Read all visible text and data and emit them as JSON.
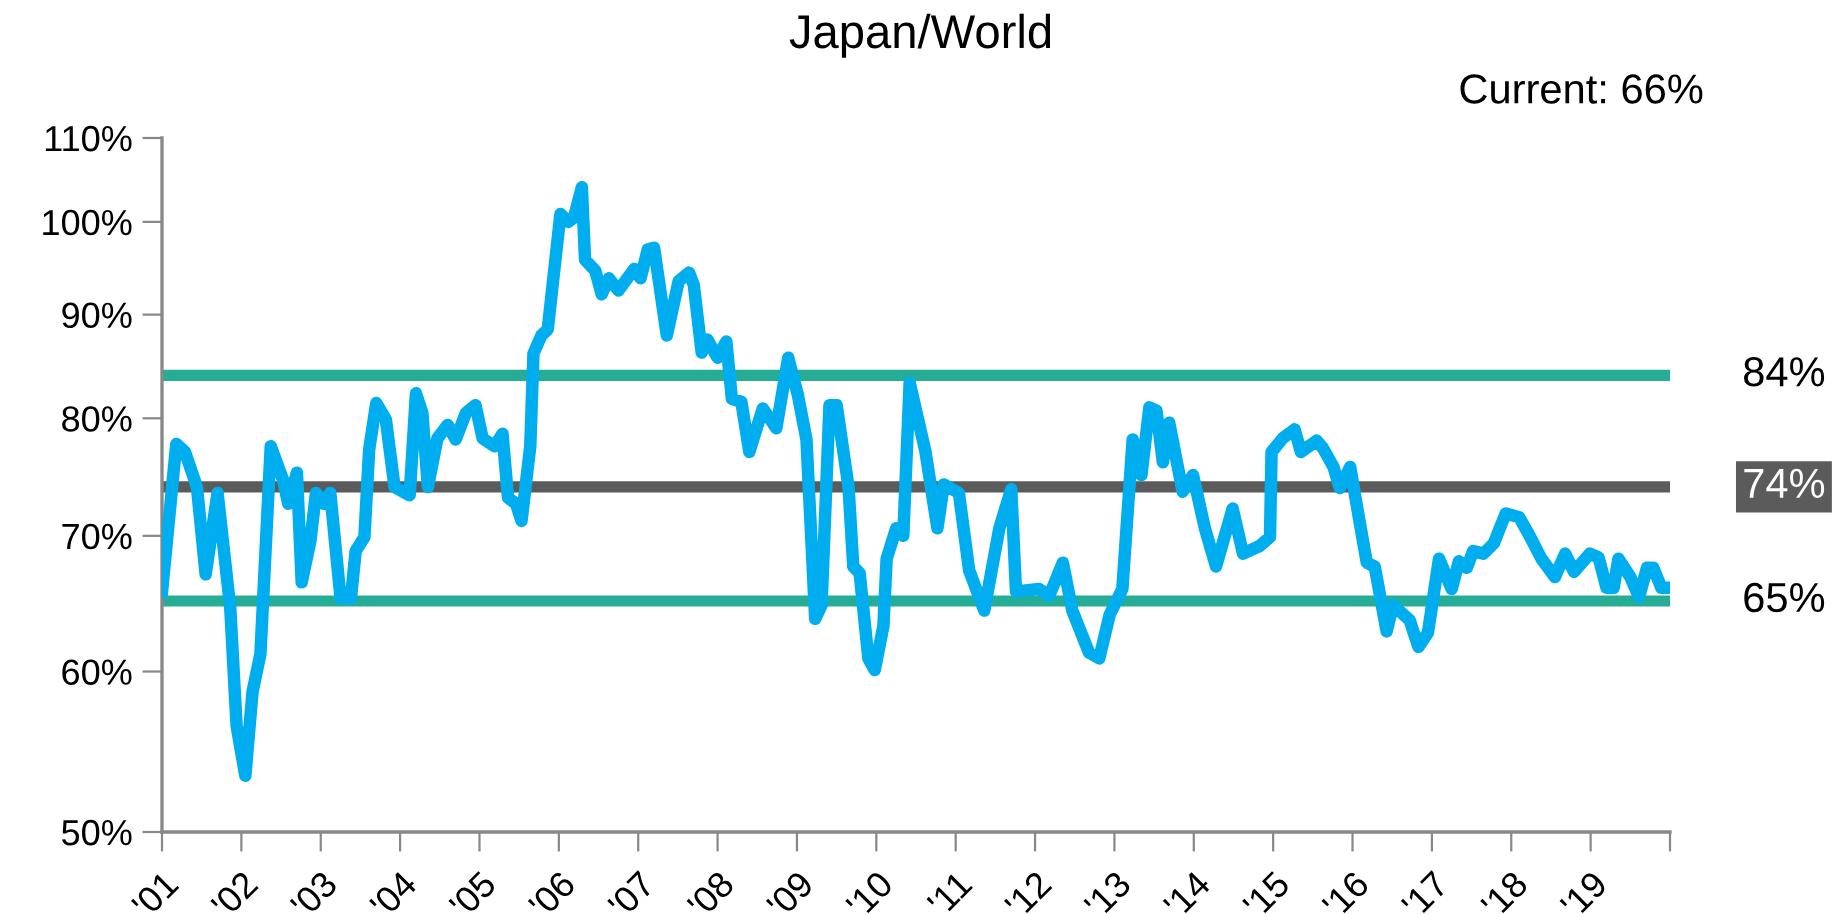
{
  "chart_data": {
    "type": "line",
    "title": "Japan/World",
    "annotations": [
      "Current: 66%"
    ],
    "x": [
      2001.0,
      2001.18,
      2001.29,
      2001.44,
      2001.55,
      2001.7,
      2001.86,
      2001.94,
      2002.05,
      2002.14,
      2002.24,
      2002.37,
      2002.53,
      2002.59,
      2002.7,
      2002.76,
      2002.87,
      2002.94,
      2003.04,
      2003.12,
      2003.25,
      2003.38,
      2003.44,
      2003.55,
      2003.61,
      2003.7,
      2003.82,
      2003.93,
      2004.04,
      2004.12,
      2004.2,
      2004.28,
      2004.35,
      2004.47,
      2004.6,
      2004.7,
      2004.83,
      2004.95,
      2005.04,
      2005.19,
      2005.29,
      2005.36,
      2005.46,
      2005.53,
      2005.64,
      2005.68,
      2005.78,
      2005.86,
      2006.02,
      2006.12,
      2006.19,
      2006.29,
      2006.33,
      2006.46,
      2006.54,
      2006.63,
      2006.75,
      2006.95,
      2007.03,
      2007.12,
      2007.2,
      2007.36,
      2007.51,
      2007.64,
      2007.7,
      2007.8,
      2007.87,
      2008.0,
      2008.11,
      2008.18,
      2008.3,
      2008.4,
      2008.57,
      2008.74,
      2008.89,
      2009.01,
      2009.12,
      2009.23,
      2009.31,
      2009.41,
      2009.5,
      2009.65,
      2009.71,
      2009.79,
      2009.9,
      2009.98,
      2010.09,
      2010.13,
      2010.25,
      2010.34,
      2010.42,
      2010.62,
      2010.77,
      2010.85,
      2011.04,
      2011.17,
      2011.36,
      2011.55,
      2011.7,
      2011.76,
      2012.05,
      2012.18,
      2012.35,
      2012.47,
      2012.68,
      2012.81,
      2012.94,
      2013.1,
      2013.23,
      2013.34,
      2013.44,
      2013.53,
      2013.61,
      2013.69,
      2013.86,
      2013.99,
      2014.14,
      2014.28,
      2014.49,
      2014.62,
      2014.83,
      2014.96,
      2014.98,
      2015.12,
      2015.27,
      2015.35,
      2015.55,
      2015.63,
      2015.76,
      2015.84,
      2015.97,
      2016.09,
      2016.18,
      2016.28,
      2016.43,
      2016.51,
      2016.72,
      2016.83,
      2016.95,
      2017.09,
      2017.25,
      2017.34,
      2017.44,
      2017.52,
      2017.65,
      2017.78,
      2017.93,
      2018.1,
      2018.24,
      2018.38,
      2018.55,
      2018.68,
      2018.79,
      2018.99,
      2019.1,
      2019.2,
      2019.29,
      2019.35,
      2019.5,
      2019.61,
      2019.71,
      2019.79,
      2019.89,
      2019.96
    ],
    "series": [
      {
        "color": "#00aeef",
        "values": [
          65.7,
          77.7,
          77.0,
          74.0,
          67.0,
          73.5,
          64.5,
          56.4,
          53.3,
          58.6,
          61.2,
          77.5,
          74.5,
          72.6,
          75.2,
          66.4,
          69.6,
          73.5,
          72.6,
          73.5,
          65.2,
          65.2,
          68.8,
          69.9,
          77.2,
          81.4,
          79.9,
          74.0,
          73.6,
          73.3,
          82.3,
          80.5,
          74.0,
          78.2,
          79.4,
          78.1,
          80.5,
          81.2,
          78.2,
          77.5,
          78.6,
          73.1,
          72.6,
          71.2,
          77.5,
          86.1,
          87.9,
          88.5,
          100.9,
          100.0,
          100.5,
          104.0,
          95.8,
          94.6,
          92.1,
          93.8,
          92.5,
          94.8,
          93.8,
          96.9,
          97.1,
          87.9,
          93.5,
          94.4,
          93.1,
          86.2,
          87.5,
          85.7,
          87.3,
          81.8,
          81.5,
          77.0,
          80.9,
          79.1,
          85.7,
          82.2,
          78.1,
          63.7,
          64.7,
          81.2,
          81.2,
          74.0,
          67.6,
          67.1,
          60.9,
          60.1,
          63.2,
          68.2,
          70.6,
          70.0,
          83.3,
          77.0,
          70.6,
          74.2,
          73.5,
          67.3,
          64.3,
          70.6,
          73.8,
          65.7,
          65.9,
          65.4,
          67.9,
          64.3,
          61.3,
          60.9,
          64.0,
          65.9,
          78.1,
          75.0,
          81.0,
          80.7,
          76.1,
          79.6,
          73.6,
          75.0,
          70.6,
          67.6,
          72.2,
          68.6,
          69.2,
          69.9,
          77.0,
          78.2,
          79.0,
          77.0,
          78.0,
          77.3,
          75.7,
          73.9,
          75.7,
          71.1,
          67.9,
          67.6,
          62.8,
          64.7,
          63.6,
          61.7,
          62.7,
          68.2,
          65.9,
          68.0,
          67.5,
          68.8,
          68.6,
          69.4,
          71.8,
          71.5,
          69.9,
          68.2,
          66.8,
          68.6,
          67.2,
          68.6,
          68.3,
          66.0,
          66.0,
          68.2,
          66.8,
          65.3,
          67.5,
          67.5,
          66.0,
          66.0
        ]
      }
    ],
    "log": "y",
    "ylim": [
      50,
      110
    ],
    "yticks": [
      {
        "value": 50,
        "label": "50%"
      },
      {
        "value": 60,
        "label": "60%"
      },
      {
        "value": 70,
        "label": "70%"
      },
      {
        "value": 80,
        "label": "80%"
      },
      {
        "value": 90,
        "label": "90%"
      },
      {
        "value": 100,
        "label": "100%"
      },
      {
        "value": 110,
        "label": "110%"
      }
    ],
    "xlim": [
      2001,
      2020
    ],
    "xticks": [
      {
        "value": 2001,
        "label": "'01"
      },
      {
        "value": 2002,
        "label": "'02"
      },
      {
        "value": 2003,
        "label": "'03"
      },
      {
        "value": 2004,
        "label": "'04"
      },
      {
        "value": 2005,
        "label": "'05"
      },
      {
        "value": 2006,
        "label": "'06"
      },
      {
        "value": 2007,
        "label": "'07"
      },
      {
        "value": 2008,
        "label": "'08"
      },
      {
        "value": 2009,
        "label": "'09"
      },
      {
        "value": 2010,
        "label": "'10"
      },
      {
        "value": 2011,
        "label": "'11"
      },
      {
        "value": 2012,
        "label": "'12"
      },
      {
        "value": 2013,
        "label": "'13"
      },
      {
        "value": 2014,
        "label": "'14"
      },
      {
        "value": 2015,
        "label": "'15"
      },
      {
        "value": 2016,
        "label": "'16"
      },
      {
        "value": 2017,
        "label": "'17"
      },
      {
        "value": 2018,
        "label": "'18"
      },
      {
        "value": 2019,
        "label": "'19"
      },
      {
        "value": 2020,
        "label": null
      }
    ],
    "ref_lines": [
      {
        "axis": "y",
        "value": 84,
        "label": "84%",
        "color": "#26ad96"
      },
      {
        "axis": "y",
        "value": 74,
        "label": "74%",
        "color": "#5b5b5c"
      },
      {
        "axis": "y",
        "value": 65,
        "label": "65%",
        "color": "#26ad96"
      }
    ],
    "grid": false,
    "marker": "none",
    "line_style": "solid"
  }
}
